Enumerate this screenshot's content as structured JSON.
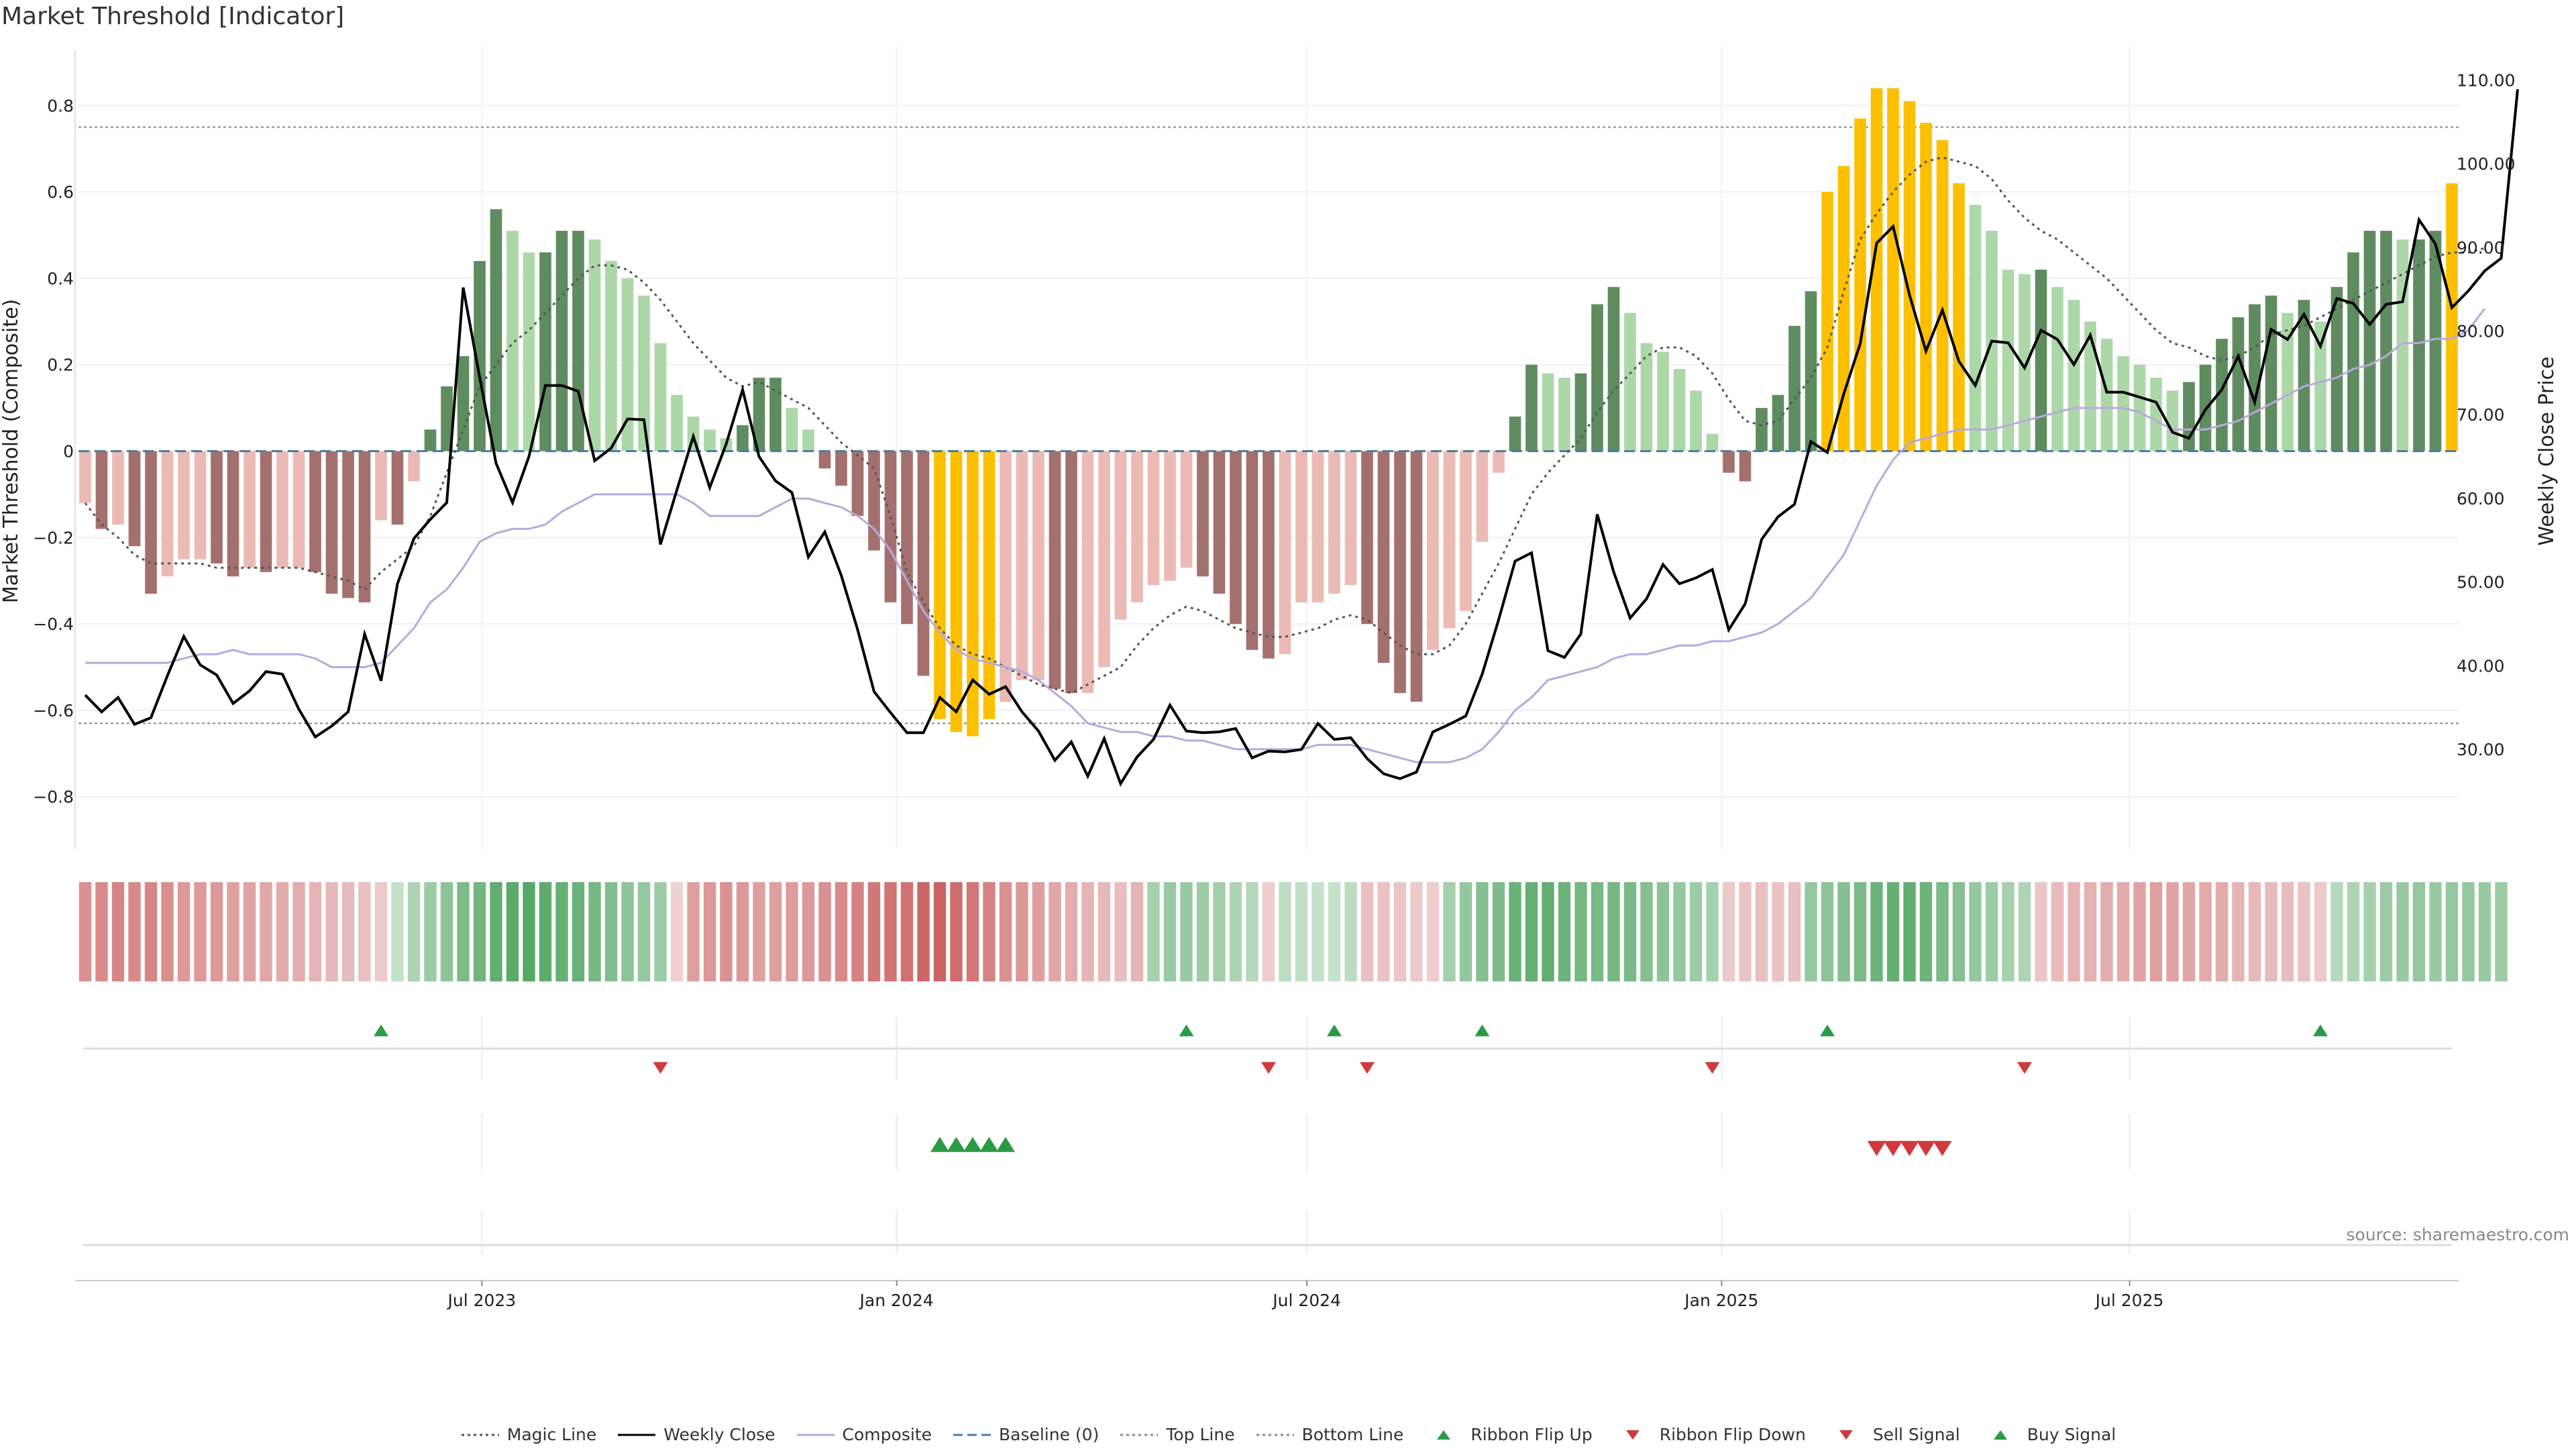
{
  "title": "Market Threshold [Indicator]",
  "source": "source: sharemaestro.com",
  "colors": {
    "strong_pos": "#5e8c5e",
    "weak_pos": "#acd8a8",
    "strong_neg": "#a4706e",
    "weak_neg": "#ecbab4",
    "extreme": "#fdc000",
    "weekly_close": "#000000",
    "composite": "#b8a9dd",
    "magic": "#555555",
    "baseline": "#4a7fa5",
    "threshold": "#888888",
    "ribbon_pos": "#3a9a4c",
    "ribbon_neg": "#c44d4d",
    "signal_up": "#2b9a46",
    "signal_down": "#d03a3a"
  },
  "legend": [
    {
      "label": "Magic Line",
      "icon": "dotted-line-icon"
    },
    {
      "label": "Weekly Close",
      "icon": "solid-line-icon"
    },
    {
      "label": "Composite",
      "icon": "solid-line-icon"
    },
    {
      "label": "Baseline (0)",
      "icon": "dashed-line-icon"
    },
    {
      "label": "Top Line",
      "icon": "dotted-line-icon"
    },
    {
      "label": "Bottom Line",
      "icon": "dotted-line-icon"
    },
    {
      "label": "Ribbon Flip Up",
      "icon": "triangle-up-icon"
    },
    {
      "label": "Ribbon Flip Down",
      "icon": "triangle-down-icon"
    },
    {
      "label": "Sell Signal",
      "icon": "triangle-down-icon"
    },
    {
      "label": "Buy Signal",
      "icon": "triangle-up-icon"
    }
  ],
  "chart_data": {
    "type": "bar",
    "x_start": "2023-01-06",
    "x_end": "2025-11-21",
    "x_ticks": [
      {
        "date": "2023-07-01",
        "label": "Jul 2023"
      },
      {
        "date": "2024-01-01",
        "label": "Jan 2024"
      },
      {
        "date": "2024-07-01",
        "label": "Jul 2024"
      },
      {
        "date": "2025-01-01",
        "label": "Jan 2025"
      },
      {
        "date": "2025-07-01",
        "label": "Jul 2025"
      }
    ],
    "ylabel_left": "Market Threshold (Composite)",
    "ylabel_right": "Weekly Close Price",
    "ylim_left": [
      -0.92,
      0.92
    ],
    "ylim_right": [
      18.15,
      113.15
    ],
    "yticks_left": [
      0.8,
      0.6,
      0.4,
      0.2,
      0,
      -0.2,
      -0.4,
      -0.6,
      -0.8
    ],
    "ytick_left_labels": [
      "0.8",
      "0.6",
      "0.4",
      "0.2",
      "0",
      "−0.2",
      "−0.4",
      "−0.6",
      "−0.8"
    ],
    "yticks_right": [
      110,
      100,
      90,
      80,
      70,
      60,
      50,
      40,
      30
    ],
    "ytick_right_labels": [
      "110.00",
      "100.00",
      "90.00",
      "80.00",
      "70.00",
      "60.00",
      "50.00",
      "40.00",
      "30.00"
    ],
    "top_line": 0.75,
    "bottom_line": -0.63,
    "baseline": 0,
    "grid": true,
    "composite_bars": [
      -0.12,
      -0.18,
      -0.17,
      -0.22,
      -0.33,
      -0.29,
      -0.25,
      -0.25,
      -0.26,
      -0.29,
      -0.27,
      -0.28,
      -0.27,
      -0.27,
      -0.28,
      -0.33,
      -0.34,
      -0.35,
      -0.16,
      -0.17,
      -0.07,
      0.05,
      0.15,
      0.22,
      0.44,
      0.56,
      0.51,
      0.46,
      0.46,
      0.51,
      0.51,
      0.49,
      0.44,
      0.4,
      0.36,
      0.25,
      0.13,
      0.08,
      0.05,
      0.03,
      0.06,
      0.17,
      0.17,
      0.1,
      0.05,
      -0.04,
      -0.08,
      -0.15,
      -0.23,
      -0.35,
      -0.4,
      -0.52,
      -0.62,
      -0.65,
      -0.66,
      -0.62,
      -0.58,
      -0.53,
      -0.53,
      -0.55,
      -0.56,
      -0.56,
      -0.5,
      -0.39,
      -0.35,
      -0.31,
      -0.3,
      -0.27,
      -0.29,
      -0.33,
      -0.4,
      -0.46,
      -0.48,
      -0.47,
      -0.35,
      -0.35,
      -0.33,
      -0.31,
      -0.4,
      -0.49,
      -0.56,
      -0.58,
      -0.46,
      -0.41,
      -0.37,
      -0.21,
      -0.05,
      0.08,
      0.2,
      0.18,
      0.17,
      0.18,
      0.34,
      0.38,
      0.32,
      0.25,
      0.23,
      0.19,
      0.14,
      0.04,
      -0.05,
      -0.07,
      0.1,
      0.13,
      0.29,
      0.37,
      0.6,
      0.66,
      0.77,
      0.84,
      0.84,
      0.81,
      0.76,
      0.72,
      0.62,
      0.57,
      0.51,
      0.42,
      0.41,
      0.42,
      0.38,
      0.35,
      0.3,
      0.26,
      0.22,
      0.2,
      0.17,
      0.14,
      0.16,
      0.2,
      0.26,
      0.31,
      0.34,
      0.36,
      0.32,
      0.35,
      0.3,
      0.38,
      0.46,
      0.51,
      0.51,
      0.49,
      0.49,
      0.51,
      0.62
    ],
    "weekly_close": [
      36.5,
      34.5,
      36.2,
      33.0,
      33.8,
      38.8,
      43.5,
      40.1,
      38.9,
      35.5,
      37.0,
      39.3,
      39.0,
      34.8,
      31.5,
      32.8,
      34.5,
      43.8,
      38.2,
      49.8,
      55.2,
      57.5,
      59.5,
      85.2,
      74.5,
      64.2,
      59.5,
      65.0,
      73.5,
      73.5,
      72.8,
      64.5,
      66.0,
      69.5,
      69.4,
      54.5,
      61.0,
      67.4,
      61.3,
      66.5,
      73.0,
      65.0,
      62.1,
      60.7,
      53.0,
      56.0,
      50.8,
      44.3,
      36.9,
      34.4,
      32.0,
      32.0,
      36.2,
      34.5,
      38.3,
      36.6,
      37.5,
      34.5,
      32.2,
      28.7,
      30.9,
      26.8,
      31.3,
      25.9,
      29.1,
      31.2,
      35.3,
      32.2,
      32.0,
      32.1,
      32.5,
      29.0,
      29.8,
      29.7,
      30.0,
      33.1,
      31.2,
      31.4,
      28.9,
      27.1,
      26.5,
      27.3,
      32.1,
      33.0,
      34.0,
      39.0,
      45.5,
      52.5,
      53.5,
      41.8,
      41.0,
      43.8,
      58.1,
      51.2,
      45.7,
      48.0,
      52.1,
      49.8,
      50.5,
      51.5,
      44.3,
      47.4,
      55.1,
      57.8,
      59.3,
      66.8,
      65.5,
      72.5,
      78.5,
      90.5,
      92.5,
      84.3,
      77.6,
      82.5,
      76.4,
      73.5,
      78.8,
      78.6,
      75.6,
      80.1,
      79.0,
      76.0,
      79.5,
      72.7,
      72.7,
      72.1,
      71.5,
      67.9,
      67.2,
      70.6,
      73.0,
      77.0,
      71.5,
      80.2,
      79.0,
      82.0,
      78.2,
      83.9,
      83.3,
      80.8,
      83.2,
      83.5,
      93.3,
      90.4,
      82.8,
      84.8,
      87.2,
      88.7,
      108.9
    ],
    "composite_line": [
      -0.49,
      -0.49,
      -0.49,
      -0.49,
      -0.49,
      -0.49,
      -0.48,
      -0.47,
      -0.47,
      -0.46,
      -0.47,
      -0.47,
      -0.47,
      -0.47,
      -0.48,
      -0.5,
      -0.5,
      -0.5,
      -0.49,
      -0.45,
      -0.41,
      -0.35,
      -0.32,
      -0.27,
      -0.21,
      -0.19,
      -0.18,
      -0.18,
      -0.17,
      -0.14,
      -0.12,
      -0.1,
      -0.1,
      -0.1,
      -0.1,
      -0.1,
      -0.1,
      -0.12,
      -0.15,
      -0.15,
      -0.15,
      -0.15,
      -0.13,
      -0.11,
      -0.11,
      -0.12,
      -0.13,
      -0.15,
      -0.18,
      -0.23,
      -0.3,
      -0.37,
      -0.42,
      -0.46,
      -0.48,
      -0.49,
      -0.5,
      -0.51,
      -0.53,
      -0.56,
      -0.59,
      -0.63,
      -0.64,
      -0.65,
      -0.65,
      -0.66,
      -0.66,
      -0.67,
      -0.67,
      -0.68,
      -0.69,
      -0.69,
      -0.69,
      -0.69,
      -0.69,
      -0.68,
      -0.68,
      -0.68,
      -0.69,
      -0.7,
      -0.71,
      -0.72,
      -0.72,
      -0.72,
      -0.71,
      -0.69,
      -0.65,
      -0.6,
      -0.57,
      -0.53,
      -0.52,
      -0.51,
      -0.5,
      -0.48,
      -0.47,
      -0.47,
      -0.46,
      -0.45,
      -0.45,
      -0.44,
      -0.44,
      -0.43,
      -0.42,
      -0.4,
      -0.37,
      -0.34,
      -0.29,
      -0.24,
      -0.16,
      -0.08,
      -0.02,
      0.02,
      0.03,
      0.04,
      0.05,
      0.05,
      0.05,
      0.06,
      0.07,
      0.08,
      0.09,
      0.1,
      0.1,
      0.1,
      0.1,
      0.09,
      0.07,
      0.05,
      0.05,
      0.05,
      0.06,
      0.07,
      0.09,
      0.11,
      0.13,
      0.15,
      0.16,
      0.17,
      0.19,
      0.2,
      0.22,
      0.25,
      0.25,
      0.26,
      0.26,
      0.28,
      0.33
    ],
    "magic_line": [
      -0.12,
      -0.17,
      -0.2,
      -0.24,
      -0.26,
      -0.26,
      -0.26,
      -0.26,
      -0.27,
      -0.27,
      -0.27,
      -0.27,
      -0.27,
      -0.27,
      -0.28,
      -0.29,
      -0.3,
      -0.32,
      -0.28,
      -0.25,
      -0.22,
      -0.15,
      -0.05,
      0.05,
      0.15,
      0.2,
      0.25,
      0.28,
      0.32,
      0.36,
      0.4,
      0.43,
      0.43,
      0.42,
      0.39,
      0.35,
      0.3,
      0.25,
      0.21,
      0.17,
      0.15,
      0.16,
      0.14,
      0.12,
      0.1,
      0.06,
      0.02,
      -0.01,
      -0.04,
      -0.15,
      -0.28,
      -0.35,
      -0.41,
      -0.45,
      -0.47,
      -0.48,
      -0.5,
      -0.52,
      -0.54,
      -0.55,
      -0.56,
      -0.54,
      -0.52,
      -0.5,
      -0.45,
      -0.41,
      -0.38,
      -0.36,
      -0.37,
      -0.39,
      -0.41,
      -0.42,
      -0.43,
      -0.43,
      -0.42,
      -0.41,
      -0.39,
      -0.38,
      -0.39,
      -0.42,
      -0.45,
      -0.47,
      -0.47,
      -0.45,
      -0.4,
      -0.33,
      -0.26,
      -0.18,
      -0.1,
      -0.05,
      -0.01,
      0.03,
      0.09,
      0.14,
      0.18,
      0.22,
      0.24,
      0.24,
      0.22,
      0.18,
      0.12,
      0.07,
      0.06,
      0.07,
      0.12,
      0.17,
      0.24,
      0.37,
      0.49,
      0.55,
      0.6,
      0.64,
      0.67,
      0.68,
      0.67,
      0.66,
      0.63,
      0.58,
      0.54,
      0.51,
      0.49,
      0.46,
      0.43,
      0.4,
      0.36,
      0.32,
      0.28,
      0.25,
      0.24,
      0.22,
      0.21,
      0.22,
      0.24,
      0.27,
      0.28,
      0.29,
      0.31,
      0.33,
      0.35,
      0.37,
      0.39,
      0.41,
      0.43,
      0.45,
      0.46,
      0.46,
      0.47
    ],
    "ribbon_levels": [
      -0.55,
      -0.6,
      -0.62,
      -0.6,
      -0.62,
      -0.56,
      -0.5,
      -0.5,
      -0.5,
      -0.45,
      -0.42,
      -0.4,
      -0.38,
      -0.35,
      -0.3,
      -0.28,
      -0.26,
      -0.22,
      -0.15,
      0.15,
      0.3,
      0.4,
      0.5,
      0.6,
      0.68,
      0.78,
      0.82,
      0.85,
      0.8,
      0.75,
      0.72,
      0.65,
      0.58,
      0.5,
      0.45,
      0.4,
      -0.1,
      -0.45,
      -0.5,
      -0.55,
      -0.5,
      -0.45,
      -0.45,
      -0.48,
      -0.5,
      -0.55,
      -0.6,
      -0.65,
      -0.72,
      -0.75,
      -0.78,
      -0.85,
      -0.88,
      -0.8,
      -0.72,
      -0.65,
      -0.55,
      -0.5,
      -0.46,
      -0.4,
      -0.35,
      -0.3,
      -0.28,
      -0.24,
      -0.3,
      0.35,
      0.42,
      0.42,
      0.4,
      0.38,
      0.3,
      0.25,
      -0.12,
      0.2,
      0.18,
      0.15,
      0.15,
      0.2,
      -0.22,
      -0.2,
      -0.18,
      -0.15,
      -0.12,
      0.35,
      0.45,
      0.55,
      0.6,
      0.72,
      0.75,
      0.78,
      0.7,
      0.65,
      0.62,
      0.65,
      0.62,
      0.55,
      0.5,
      0.45,
      0.4,
      0.35,
      -0.15,
      -0.2,
      -0.22,
      -0.2,
      -0.22,
      0.45,
      0.5,
      0.55,
      0.62,
      0.7,
      0.75,
      0.78,
      0.7,
      0.62,
      0.55,
      0.45,
      0.4,
      0.35,
      0.3,
      -0.18,
      -0.25,
      -0.3,
      -0.32,
      -0.35,
      -0.38,
      -0.42,
      -0.45,
      -0.42,
      -0.4,
      -0.38,
      -0.35,
      -0.3,
      -0.28,
      -0.26,
      -0.24,
      -0.2,
      -0.15,
      0.25,
      0.3,
      0.35,
      0.4,
      0.42,
      0.45,
      0.42,
      0.45,
      0.45,
      0.42,
      0.4
    ],
    "ribbon_flip_up_weeks": [
      18,
      67,
      76,
      85,
      106,
      136
    ],
    "ribbon_flip_down_weeks": [
      35,
      72,
      78,
      99,
      118
    ],
    "buy_signal_weeks": [
      52,
      53,
      54,
      55,
      56
    ],
    "sell_signal_weeks": [
      109,
      110,
      111,
      112,
      113
    ]
  }
}
